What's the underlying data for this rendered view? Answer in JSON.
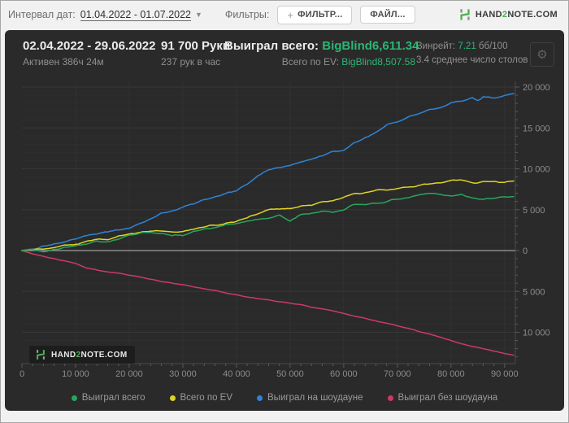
{
  "toolbar": {
    "date_interval_label": "Интервал дат:",
    "date_range": "01.04.2022 - 01.07.2022",
    "filters_label": "Фильтры:",
    "filter_button": "ФИЛЬТР...",
    "file_button": "ФАЙЛ...",
    "brand": {
      "pre": "HAND",
      "mid": "2",
      "post": "NOTE.COM"
    }
  },
  "panel": {
    "header": {
      "date_range": "02.04.2022 - 29.06.2022",
      "active_time": "Активен 386ч 24м",
      "hands": "91 700 Руки",
      "hands_per_hour": "237 рук в час",
      "won_total_label": "Выиграл всего:",
      "won_total_value": "BigBlind6,611.34",
      "ev_label": "Всего по EV:",
      "ev_value": "BigBlind8,507.58",
      "winrate_label": "Винрейт:",
      "winrate_value": "7.21",
      "winrate_unit": "бб/100",
      "avg_tables": "3.4 среднее число столов"
    },
    "watermark": {
      "pre": "HAND",
      "mid": "2",
      "post": "NOTE.COM"
    }
  },
  "colors": {
    "accent_green": "#2bb673",
    "brand_green": "#4caf50",
    "panel_bg": "#2a2a2a",
    "page_bg": "#f1f1f1"
  },
  "chart_data": {
    "type": "line",
    "title": "",
    "xlabel": "",
    "ylabel": "",
    "x_range": [
      0,
      92000
    ],
    "y_range": [
      -13800,
      20800
    ],
    "grid": true,
    "zero_line": true,
    "legend_position": "bottom",
    "x_ticks": [
      {
        "v": 0,
        "label": "0"
      },
      {
        "v": 10000,
        "label": "10 000"
      },
      {
        "v": 20000,
        "label": "20 000"
      },
      {
        "v": 30000,
        "label": "30 000"
      },
      {
        "v": 40000,
        "label": "40 000"
      },
      {
        "v": 50000,
        "label": "50 000"
      },
      {
        "v": 60000,
        "label": "60 000"
      },
      {
        "v": 70000,
        "label": "70 000"
      },
      {
        "v": 80000,
        "label": "80 000"
      },
      {
        "v": 90000,
        "label": "90 000"
      }
    ],
    "y_ticks": [
      {
        "v": 20000,
        "label": "20 000"
      },
      {
        "v": 15000,
        "label": "15 000"
      },
      {
        "v": 10000,
        "label": "10 000"
      },
      {
        "v": 5000,
        "label": "5 000"
      },
      {
        "v": 0,
        "label": "0"
      },
      {
        "v": -5000,
        "label": "5 000"
      },
      {
        "v": -10000,
        "label": "10 000"
      }
    ],
    "series": [
      {
        "name": "Выиграл всего",
        "color": "#27a65c",
        "noise": 160,
        "points": [
          [
            0,
            0
          ],
          [
            2000,
            150
          ],
          [
            4000,
            -200
          ],
          [
            6000,
            100
          ],
          [
            8000,
            400
          ],
          [
            10000,
            600
          ],
          [
            12000,
            900
          ],
          [
            14000,
            1200
          ],
          [
            16000,
            1000
          ],
          [
            18000,
            1500
          ],
          [
            20000,
            1900
          ],
          [
            22000,
            2100
          ],
          [
            24000,
            2300
          ],
          [
            26000,
            2050
          ],
          [
            28000,
            1800
          ],
          [
            30000,
            1950
          ],
          [
            32000,
            2300
          ],
          [
            34000,
            2600
          ],
          [
            36000,
            2800
          ],
          [
            38000,
            3100
          ],
          [
            40000,
            3300
          ],
          [
            42000,
            3600
          ],
          [
            44000,
            3700
          ],
          [
            46000,
            4000
          ],
          [
            48000,
            4300
          ],
          [
            50000,
            3600
          ],
          [
            52000,
            4400
          ],
          [
            54000,
            4600
          ],
          [
            56000,
            4800
          ],
          [
            58000,
            4700
          ],
          [
            60000,
            5000
          ],
          [
            62000,
            5600
          ],
          [
            64000,
            5700
          ],
          [
            66000,
            5800
          ],
          [
            68000,
            6000
          ],
          [
            70000,
            6300
          ],
          [
            72000,
            6500
          ],
          [
            74000,
            6800
          ],
          [
            76000,
            7000
          ],
          [
            78000,
            6900
          ],
          [
            80000,
            6700
          ],
          [
            82000,
            6900
          ],
          [
            84000,
            6500
          ],
          [
            86000,
            6200
          ],
          [
            88000,
            6400
          ],
          [
            90000,
            6500
          ],
          [
            91700,
            6611
          ]
        ]
      },
      {
        "name": "Всего по EV",
        "color": "#ddd424",
        "noise": 140,
        "points": [
          [
            0,
            0
          ],
          [
            2000,
            100
          ],
          [
            4000,
            200
          ],
          [
            6000,
            400
          ],
          [
            8000,
            600
          ],
          [
            10000,
            800
          ],
          [
            12000,
            1100
          ],
          [
            14000,
            1400
          ],
          [
            16000,
            1300
          ],
          [
            18000,
            1700
          ],
          [
            20000,
            2000
          ],
          [
            22000,
            2200
          ],
          [
            24000,
            2400
          ],
          [
            26000,
            2300
          ],
          [
            28000,
            2200
          ],
          [
            30000,
            2350
          ],
          [
            32000,
            2700
          ],
          [
            34000,
            2900
          ],
          [
            36000,
            3100
          ],
          [
            38000,
            3400
          ],
          [
            40000,
            3600
          ],
          [
            42000,
            4000
          ],
          [
            44000,
            4600
          ],
          [
            46000,
            5000
          ],
          [
            48000,
            5100
          ],
          [
            50000,
            5200
          ],
          [
            52000,
            5400
          ],
          [
            54000,
            5600
          ],
          [
            56000,
            5900
          ],
          [
            58000,
            6100
          ],
          [
            60000,
            6500
          ],
          [
            62000,
            7000
          ],
          [
            64000,
            7100
          ],
          [
            66000,
            7300
          ],
          [
            68000,
            7500
          ],
          [
            70000,
            7600
          ],
          [
            72000,
            7800
          ],
          [
            74000,
            8000
          ],
          [
            76000,
            8200
          ],
          [
            78000,
            8300
          ],
          [
            80000,
            8500
          ],
          [
            82000,
            8600
          ],
          [
            84000,
            8300
          ],
          [
            86000,
            8400
          ],
          [
            88000,
            8500
          ],
          [
            90000,
            8400
          ],
          [
            91700,
            8507
          ]
        ]
      },
      {
        "name": "Выиграл на шоудауне",
        "color": "#2f84d8",
        "noise": 140,
        "points": [
          [
            0,
            0
          ],
          [
            2000,
            200
          ],
          [
            4000,
            500
          ],
          [
            6000,
            800
          ],
          [
            8000,
            1100
          ],
          [
            10000,
            1400
          ],
          [
            12000,
            1800
          ],
          [
            14000,
            2100
          ],
          [
            16000,
            2300
          ],
          [
            18000,
            2500
          ],
          [
            20000,
            2700
          ],
          [
            22000,
            3300
          ],
          [
            24000,
            3900
          ],
          [
            26000,
            4500
          ],
          [
            28000,
            4900
          ],
          [
            30000,
            5300
          ],
          [
            32000,
            5700
          ],
          [
            34000,
            6200
          ],
          [
            36000,
            6600
          ],
          [
            38000,
            7000
          ],
          [
            40000,
            7300
          ],
          [
            42000,
            8100
          ],
          [
            44000,
            9200
          ],
          [
            46000,
            9900
          ],
          [
            48000,
            10100
          ],
          [
            50000,
            10300
          ],
          [
            52000,
            10800
          ],
          [
            54000,
            11200
          ],
          [
            56000,
            11600
          ],
          [
            58000,
            12000
          ],
          [
            60000,
            12300
          ],
          [
            62000,
            13200
          ],
          [
            64000,
            13800
          ],
          [
            66000,
            14500
          ],
          [
            68000,
            15300
          ],
          [
            70000,
            15800
          ],
          [
            72000,
            16300
          ],
          [
            74000,
            16800
          ],
          [
            76000,
            17300
          ],
          [
            78000,
            17400
          ],
          [
            80000,
            18100
          ],
          [
            82000,
            18300
          ],
          [
            84000,
            18600
          ],
          [
            85000,
            18300
          ],
          [
            86000,
            18800
          ],
          [
            88000,
            18700
          ],
          [
            90000,
            19000
          ],
          [
            91700,
            19200
          ]
        ]
      },
      {
        "name": "Выиграл без шоудауна",
        "color": "#cc3a64",
        "noise": 60,
        "points": [
          [
            0,
            0
          ],
          [
            2000,
            -400
          ],
          [
            4000,
            -700
          ],
          [
            6000,
            -1000
          ],
          [
            8000,
            -1300
          ],
          [
            10000,
            -1600
          ],
          [
            12000,
            -2100
          ],
          [
            14000,
            -2400
          ],
          [
            16000,
            -2600
          ],
          [
            18000,
            -2800
          ],
          [
            20000,
            -3000
          ],
          [
            22000,
            -3250
          ],
          [
            24000,
            -3500
          ],
          [
            26000,
            -3750
          ],
          [
            28000,
            -4000
          ],
          [
            30000,
            -4200
          ],
          [
            32000,
            -4450
          ],
          [
            34000,
            -4700
          ],
          [
            36000,
            -4900
          ],
          [
            38000,
            -5150
          ],
          [
            40000,
            -5400
          ],
          [
            42000,
            -5650
          ],
          [
            44000,
            -5900
          ],
          [
            46000,
            -6050
          ],
          [
            48000,
            -6250
          ],
          [
            50000,
            -6400
          ],
          [
            52000,
            -6650
          ],
          [
            54000,
            -6900
          ],
          [
            56000,
            -7100
          ],
          [
            58000,
            -7400
          ],
          [
            60000,
            -7700
          ],
          [
            62000,
            -8000
          ],
          [
            64000,
            -8300
          ],
          [
            66000,
            -8600
          ],
          [
            68000,
            -8900
          ],
          [
            70000,
            -9200
          ],
          [
            72000,
            -9500
          ],
          [
            74000,
            -9900
          ],
          [
            76000,
            -10200
          ],
          [
            78000,
            -10600
          ],
          [
            80000,
            -11000
          ],
          [
            82000,
            -11400
          ],
          [
            84000,
            -11700
          ],
          [
            86000,
            -12000
          ],
          [
            88000,
            -12300
          ],
          [
            90000,
            -12600
          ],
          [
            91700,
            -12800
          ]
        ]
      }
    ]
  }
}
